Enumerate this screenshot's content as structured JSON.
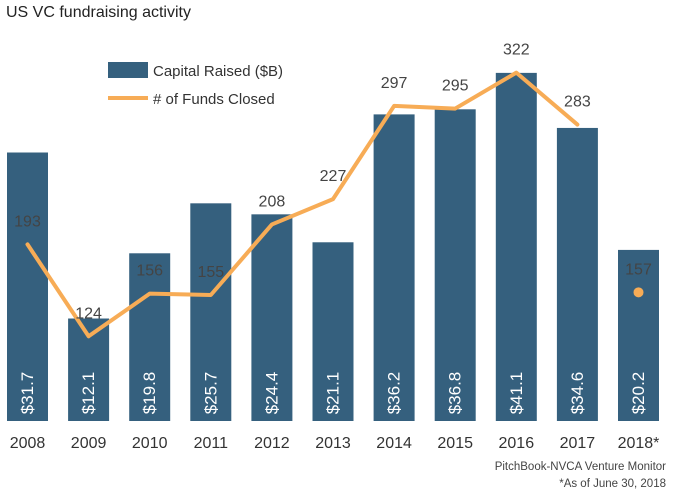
{
  "chart_data": {
    "type": "bar",
    "title": "US VC fundraising activity",
    "categories": [
      "2008",
      "2009",
      "2010",
      "2011",
      "2012",
      "2013",
      "2014",
      "2015",
      "2016",
      "2017",
      "2018*"
    ],
    "series": [
      {
        "name": "Capital Raised ($B)",
        "type": "bar",
        "values": [
          31.7,
          12.1,
          19.8,
          25.7,
          24.4,
          21.1,
          36.2,
          36.8,
          41.1,
          34.6,
          20.2
        ],
        "labels": [
          "$31.7",
          "$12.1",
          "$19.8",
          "$25.7",
          "$24.4",
          "$21.1",
          "$36.2",
          "$36.8",
          "$41.1",
          "$34.6",
          "$20.2"
        ],
        "color": "#35607e"
      },
      {
        "name": "# of Funds Closed",
        "type": "line",
        "values": [
          193,
          124,
          156,
          155,
          208,
          227,
          297,
          295,
          322,
          283,
          157
        ],
        "labels": [
          "193",
          "124",
          "156",
          "155",
          "208",
          "227",
          "297",
          "295",
          "322",
          "283",
          "157"
        ],
        "color": "#f7ac56"
      }
    ],
    "legend": "top-left",
    "grid": false
  },
  "source": {
    "line1": "PitchBook-NVCA Venture Monitor",
    "line2": "*As of June 30, 2018"
  }
}
